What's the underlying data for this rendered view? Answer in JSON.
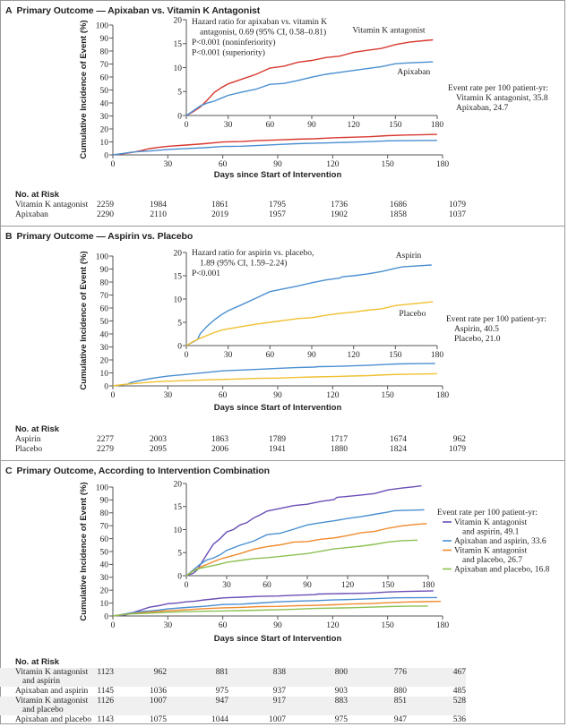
{
  "panels": [
    {
      "letter": "A",
      "title": "Primary Outcome — Apixaban vs. Vitamin K Antagonist",
      "ylabel": "Cumulative Incidence of Event (%)",
      "xlabel": "Days since Start of Intervention",
      "annotation": [
        "Hazard ratio for apixaban vs. vitamin K",
        "antagonist, 0.69 (95% CI, 0.58–0.81)",
        "P<0.001 (noninferiority)",
        "P<0.001 (superiority)"
      ],
      "event_rate": {
        "title": "Event rate per 100 patient-yr:",
        "lines": [
          "Vitamin K antagonist, 35.8",
          "Apixaban, 24.7"
        ]
      },
      "risk": {
        "header": "No. at Risk",
        "rows": [
          {
            "label": [
              "Vitamin K antagonist"
            ],
            "values": [
              2259,
              1984,
              1861,
              1795,
              1736,
              1686,
              1079
            ]
          },
          {
            "label": [
              "Apixaban"
            ],
            "values": [
              2290,
              2110,
              2019,
              1957,
              1902,
              1858,
              1037
            ]
          }
        ]
      }
    },
    {
      "letter": "B",
      "title": "Primary Outcome — Aspirin vs. Placebo",
      "ylabel": "Cumulative Incidence of Event (%)",
      "xlabel": "Days since Start of Intervention",
      "annotation": [
        "Hazard ratio for aspirin vs. placebo,",
        "1.89 (95% CI, 1.59–2.24)",
        "P<0.001"
      ],
      "event_rate": {
        "title": "Event rate per 100 patient-yr:",
        "lines": [
          "Aspirin, 40.5",
          "Placebo, 21.0"
        ]
      },
      "risk": {
        "header": "No. at Risk",
        "rows": [
          {
            "label": [
              "Aspirin"
            ],
            "values": [
              2277,
              2003,
              1863,
              1789,
              1717,
              1674,
              962
            ]
          },
          {
            "label": [
              "Placebo"
            ],
            "values": [
              2279,
              2095,
              2006,
              1941,
              1880,
              1824,
              1079
            ]
          }
        ]
      }
    },
    {
      "letter": "C",
      "title": "Primary Outcome, According to Intervention Combination",
      "ylabel": "Cumulative Incidence of Event (%)",
      "xlabel": "Days since Start of Intervention",
      "annotation": [],
      "event_rate": {
        "title": "Event rate per 100 patient-yr:",
        "lines": [
          "Vitamin K antagonist",
          "and aspirin, 49.1",
          "Apixaban and aspirin, 33.6",
          "Vitamin K antagonist",
          "and placebo, 26.7",
          "Apixaban and placebo, 16.8"
        ]
      },
      "risk": {
        "header": "No. at Risk",
        "rows": [
          {
            "label": [
              "Vitamin K antagonist",
              "and aspirin"
            ],
            "values": [
              1123,
              962,
              881,
              838,
              800,
              776,
              467
            ]
          },
          {
            "label": [
              "Apixaban and aspirin"
            ],
            "values": [
              1145,
              1036,
              975,
              937,
              903,
              880,
              485
            ]
          },
          {
            "label": [
              "Vitamin K antagonist",
              "and placebo"
            ],
            "values": [
              1126,
              1007,
              947,
              917,
              883,
              851,
              528
            ]
          },
          {
            "label": [
              "Apixaban and placebo"
            ],
            "values": [
              1143,
              1075,
              1044,
              1007,
              975,
              947,
              536
            ]
          }
        ]
      }
    }
  ],
  "chart_data": [
    {
      "type": "line",
      "title": "Primary Outcome — Apixaban vs. Vitamin K Antagonist",
      "xlabel": "Days since Start of Intervention",
      "ylabel": "Cumulative Incidence of Event (%)",
      "xlim": [
        0,
        180
      ],
      "ylim": [
        0,
        100
      ],
      "xticks": [
        0,
        30,
        60,
        90,
        120,
        150,
        180
      ],
      "yticks": [
        0,
        10,
        20,
        30,
        40,
        50,
        60,
        70,
        80,
        90,
        100
      ],
      "inset": {
        "xlim": [
          0,
          180
        ],
        "ylim": [
          0,
          20
        ],
        "xticks": [
          0,
          30,
          60,
          90,
          120,
          150,
          180
        ],
        "yticks": [
          0,
          5,
          10,
          15,
          20
        ]
      },
      "series": [
        {
          "name": "Vitamin K antagonist",
          "color": "#d7382f",
          "label_pos": "above-end",
          "x": [
            0,
            5,
            10,
            15,
            20,
            25,
            30,
            40,
            50,
            60,
            70,
            80,
            90,
            100,
            110,
            120,
            130,
            140,
            150,
            160,
            170,
            177
          ],
          "y": [
            0,
            0.8,
            1.8,
            3.2,
            4.8,
            5.8,
            6.6,
            7.6,
            8.6,
            9.9,
            10.3,
            11.1,
            11.5,
            12.1,
            12.4,
            13.2,
            13.6,
            14.0,
            14.8,
            15.3,
            15.6,
            15.8
          ]
        },
        {
          "name": "Apixaban",
          "color": "#4a8fd1",
          "label_pos": "below-end",
          "x": [
            0,
            5,
            10,
            15,
            20,
            25,
            30,
            40,
            50,
            60,
            70,
            80,
            90,
            100,
            110,
            120,
            130,
            140,
            150,
            160,
            170,
            177
          ],
          "y": [
            0,
            1.0,
            2.0,
            2.6,
            3.0,
            3.6,
            4.2,
            4.9,
            5.5,
            6.5,
            6.7,
            7.3,
            8.0,
            8.6,
            9.0,
            9.4,
            9.8,
            10.2,
            10.8,
            11.0,
            11.1,
            11.2
          ]
        }
      ],
      "annotation": [
        "Hazard ratio for apixaban vs. vitamin K antagonist, 0.69 (95% CI, 0.58–0.81)",
        "P<0.001 (noninferiority)",
        "P<0.001 (superiority)"
      ],
      "legend": "inline-labels"
    },
    {
      "type": "line",
      "title": "Primary Outcome — Aspirin vs. Placebo",
      "xlabel": "Days since Start of Intervention",
      "ylabel": "Cumulative Incidence of Event (%)",
      "xlim": [
        0,
        180
      ],
      "ylim": [
        0,
        100
      ],
      "xticks": [
        0,
        30,
        60,
        90,
        120,
        150,
        180
      ],
      "yticks": [
        0,
        10,
        20,
        30,
        40,
        50,
        60,
        70,
        80,
        90,
        100
      ],
      "inset": {
        "xlim": [
          0,
          180
        ],
        "ylim": [
          0,
          20
        ],
        "xticks": [
          0,
          30,
          60,
          90,
          120,
          150,
          180
        ],
        "yticks": [
          0,
          5,
          10,
          15,
          20
        ]
      },
      "series": [
        {
          "name": "Aspirin",
          "color": "#4a8fd1",
          "label_pos": "above-end",
          "x": [
            0,
            5,
            8,
            10,
            15,
            20,
            25,
            30,
            40,
            50,
            60,
            70,
            80,
            90,
            100,
            110,
            112,
            120,
            130,
            140,
            150,
            155,
            165,
            176
          ],
          "y": [
            0,
            0.8,
            1.3,
            2.6,
            4.2,
            5.5,
            6.6,
            7.5,
            8.8,
            10.2,
            11.6,
            12.2,
            12.8,
            13.5,
            14.1,
            14.5,
            14.8,
            15.0,
            15.4,
            15.9,
            16.6,
            16.9,
            17.1,
            17.3
          ]
        },
        {
          "name": "Placebo",
          "color": "#f0c030",
          "label_pos": "below-end",
          "x": [
            0,
            5,
            10,
            15,
            20,
            25,
            30,
            40,
            50,
            60,
            70,
            80,
            90,
            100,
            110,
            120,
            130,
            140,
            150,
            160,
            170,
            177
          ],
          "y": [
            0,
            0.9,
            1.6,
            2.2,
            2.8,
            3.3,
            3.6,
            4.1,
            4.6,
            5.0,
            5.4,
            5.8,
            6.0,
            6.5,
            6.9,
            7.2,
            7.6,
            7.9,
            8.6,
            8.9,
            9.2,
            9.4
          ]
        }
      ],
      "annotation": [
        "Hazard ratio for aspirin vs. placebo, 1.89 (95% CI, 1.59–2.24)",
        "P<0.001"
      ],
      "legend": "inline-labels"
    },
    {
      "type": "line",
      "title": "Primary Outcome, According to Intervention Combination",
      "xlabel": "Days since Start of Intervention",
      "ylabel": "Cumulative Incidence of Event (%)",
      "xlim": [
        0,
        180
      ],
      "ylim": [
        0,
        100
      ],
      "xticks": [
        0,
        30,
        60,
        90,
        120,
        150,
        180
      ],
      "yticks": [
        0,
        10,
        20,
        30,
        40,
        50,
        60,
        70,
        80,
        90,
        100
      ],
      "inset": {
        "xlim": [
          0,
          180
        ],
        "ylim": [
          0,
          20
        ],
        "xticks": [
          0,
          30,
          60,
          90,
          120,
          150,
          180
        ],
        "yticks": [
          0,
          5,
          10,
          15,
          20
        ]
      },
      "series": [
        {
          "name": "Vitamin K antagonist and aspirin",
          "color": "#6a4fb6",
          "x": [
            0,
            5,
            8,
            10,
            15,
            20,
            25,
            30,
            35,
            40,
            45,
            50,
            55,
            60,
            70,
            80,
            90,
            100,
            110,
            112,
            120,
            130,
            140,
            150,
            160,
            170,
            175
          ],
          "y": [
            0,
            0.5,
            1.2,
            2.2,
            4.5,
            6.8,
            8.0,
            9.5,
            10.0,
            11.0,
            11.5,
            12.5,
            13.2,
            14.0,
            14.6,
            15.2,
            15.5,
            16.1,
            16.5,
            17.0,
            17.2,
            17.5,
            17.8,
            18.6,
            19.0,
            19.3,
            19.5
          ]
        },
        {
          "name": "Apixaban and aspirin",
          "color": "#4a8fd1",
          "x": [
            0,
            5,
            10,
            15,
            20,
            25,
            30,
            40,
            50,
            60,
            70,
            80,
            90,
            100,
            110,
            120,
            130,
            140,
            150,
            155,
            165,
            177
          ],
          "y": [
            0,
            1.2,
            2.4,
            3.4,
            3.8,
            4.5,
            5.5,
            6.6,
            7.5,
            8.9,
            9.2,
            10.1,
            11.0,
            11.5,
            11.9,
            12.4,
            12.8,
            13.3,
            13.8,
            14.1,
            14.2,
            14.3
          ]
        },
        {
          "name": "Vitamin K antagonist and placebo",
          "color": "#f08a2c",
          "x": [
            0,
            5,
            10,
            15,
            20,
            25,
            30,
            40,
            50,
            60,
            70,
            80,
            90,
            100,
            110,
            120,
            130,
            140,
            150,
            160,
            170,
            179
          ],
          "y": [
            0,
            1.0,
            1.8,
            2.4,
            3.0,
            3.6,
            4.0,
            4.8,
            5.7,
            6.3,
            6.7,
            7.3,
            7.4,
            7.9,
            8.2,
            8.7,
            9.3,
            9.6,
            10.3,
            10.8,
            11.1,
            11.3
          ]
        },
        {
          "name": "Apixaban and placebo",
          "color": "#8cc152",
          "x": [
            0,
            5,
            10,
            15,
            20,
            25,
            30,
            40,
            50,
            60,
            70,
            80,
            90,
            100,
            110,
            120,
            130,
            140,
            150,
            160,
            172
          ],
          "y": [
            0,
            1.0,
            1.6,
            1.9,
            2.2,
            2.5,
            2.9,
            3.3,
            3.7,
            3.9,
            4.2,
            4.5,
            4.8,
            5.3,
            5.8,
            6.1,
            6.4,
            6.8,
            7.3,
            7.6,
            7.7
          ]
        }
      ],
      "annotation": [],
      "legend": "right"
    }
  ]
}
